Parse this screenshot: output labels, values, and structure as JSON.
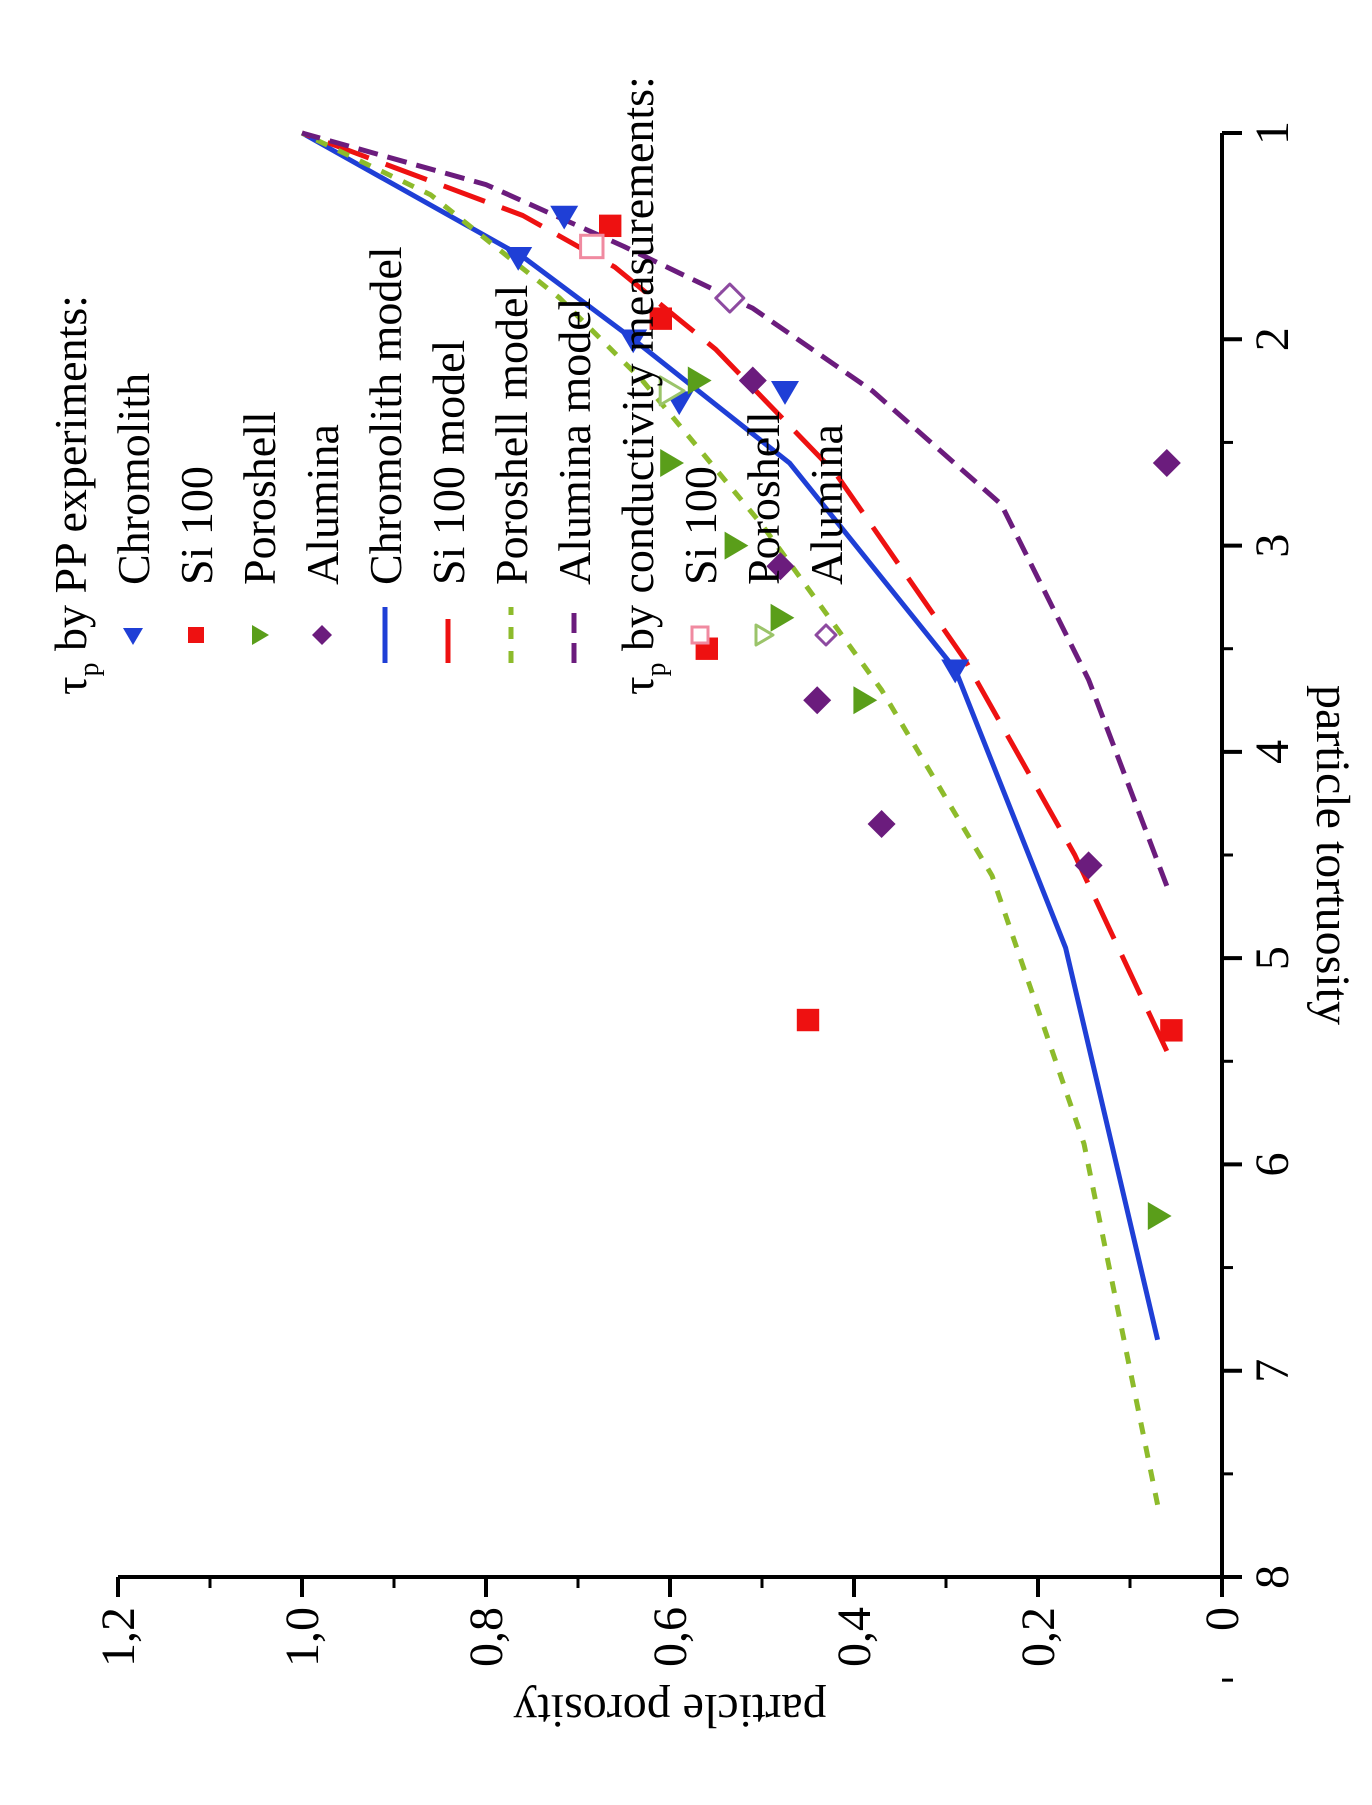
{
  "chart_data": {
    "type": "scatter",
    "xlabel": "particle tortuosity",
    "ylabel": "particle porosity",
    "xlim": [
      1,
      8
    ],
    "ylim": [
      0,
      1.2
    ],
    "x_direction": "reversed",
    "x_ticks": [
      "8",
      "7",
      "6",
      "5",
      "4",
      "3",
      "2",
      "1"
    ],
    "y_ticks": [
      "0",
      "0,2",
      "0,4",
      "0,6",
      "0,8",
      "1,0",
      "1,2"
    ],
    "grid": false,
    "legend": {
      "position": "top",
      "groups": [
        {
          "title": "τ",
          "title_sub": "p",
          "title_rest": " by PP experiments:",
          "entries": [
            "Chromolith",
            "Si 100",
            "Poroshell",
            "Alumina",
            "Chromolith model",
            "Si 100 model",
            "Poroshell model",
            "Alumina model"
          ]
        },
        {
          "title": "τ",
          "title_sub": "p",
          "title_rest": " by conductivity measurements:",
          "entries": [
            "Si 100",
            "Poroshell",
            "Alumina"
          ]
        }
      ]
    },
    "series": [
      {
        "name": "Chromolith",
        "kind": "markers",
        "marker": "triangle-left",
        "filled": true,
        "color": "#1f3fd6",
        "points": [
          [
            3.6,
            0.29
          ],
          [
            2.25,
            0.475
          ],
          [
            2.3,
            0.59
          ],
          [
            2.0,
            0.64
          ],
          [
            1.6,
            0.765
          ],
          [
            1.4,
            0.715
          ]
        ]
      },
      {
        "name": "Si 100",
        "kind": "markers",
        "marker": "square",
        "filled": true,
        "color": "#ee1111",
        "points": [
          [
            5.35,
            0.055
          ],
          [
            5.3,
            0.45
          ],
          [
            3.5,
            0.56
          ],
          [
            1.9,
            0.61
          ],
          [
            1.45,
            0.665
          ]
        ]
      },
      {
        "name": "Poroshell",
        "kind": "markers",
        "marker": "triangle-down",
        "filled": true,
        "color": "#5a9e1a",
        "points": [
          [
            6.25,
            0.07
          ],
          [
            3.75,
            0.39
          ],
          [
            3.35,
            0.48
          ],
          [
            3.0,
            0.53
          ],
          [
            2.6,
            0.6
          ],
          [
            2.2,
            0.57
          ]
        ]
      },
      {
        "name": "Alumina",
        "kind": "markers",
        "marker": "diamond",
        "filled": true,
        "color": "#6b1c7d",
        "points": [
          [
            2.6,
            0.06
          ],
          [
            4.55,
            0.145
          ],
          [
            4.35,
            0.37
          ],
          [
            3.75,
            0.44
          ],
          [
            3.1,
            0.48
          ],
          [
            2.2,
            0.51
          ]
        ]
      },
      {
        "name": "Chromolith model",
        "kind": "line",
        "dash": "solid",
        "color": "#1f3fd6",
        "points": [
          [
            6.85,
            0.07
          ],
          [
            4.95,
            0.17
          ],
          [
            3.6,
            0.29
          ],
          [
            2.6,
            0.47
          ],
          [
            2.0,
            0.64
          ],
          [
            1.6,
            0.76
          ],
          [
            1.0,
            1.0
          ]
        ]
      },
      {
        "name": "Si 100 model",
        "kind": "line",
        "dash": "long-dash",
        "color": "#ee1111",
        "points": [
          [
            5.45,
            0.06
          ],
          [
            4.5,
            0.16
          ],
          [
            3.55,
            0.28
          ],
          [
            2.65,
            0.42
          ],
          [
            2.05,
            0.55
          ],
          [
            1.65,
            0.66
          ],
          [
            1.4,
            0.76
          ],
          [
            1.0,
            1.0
          ]
        ]
      },
      {
        "name": "Poroshell model",
        "kind": "line",
        "dash": "short-dash",
        "color": "#8dbb2b",
        "points": [
          [
            7.65,
            0.07
          ],
          [
            5.9,
            0.15
          ],
          [
            4.6,
            0.25
          ],
          [
            3.7,
            0.37
          ],
          [
            2.9,
            0.5
          ],
          [
            2.2,
            0.63
          ],
          [
            1.8,
            0.72
          ],
          [
            1.3,
            0.86
          ],
          [
            1.0,
            1.0
          ]
        ]
      },
      {
        "name": "Alumina model",
        "kind": "line",
        "dash": "medium-dash",
        "color": "#6b1c7d",
        "points": [
          [
            4.65,
            0.06
          ],
          [
            3.65,
            0.145
          ],
          [
            2.8,
            0.24
          ],
          [
            2.25,
            0.38
          ],
          [
            1.85,
            0.51
          ],
          [
            1.55,
            0.65
          ],
          [
            1.25,
            0.8
          ],
          [
            1.0,
            1.0
          ]
        ]
      },
      {
        "name": "Si 100",
        "kind": "markers",
        "marker": "square",
        "filled": false,
        "color": "#f08aa0",
        "points": [
          [
            1.55,
            0.685
          ]
        ]
      },
      {
        "name": "Poroshell",
        "kind": "markers",
        "marker": "triangle-down",
        "filled": false,
        "color": "#9bc46a",
        "points": [
          [
            2.25,
            0.6
          ]
        ]
      },
      {
        "name": "Alumina",
        "kind": "markers",
        "marker": "diamond",
        "filled": false,
        "color": "#8d4aa0",
        "points": [
          [
            1.8,
            0.535
          ]
        ]
      }
    ]
  }
}
